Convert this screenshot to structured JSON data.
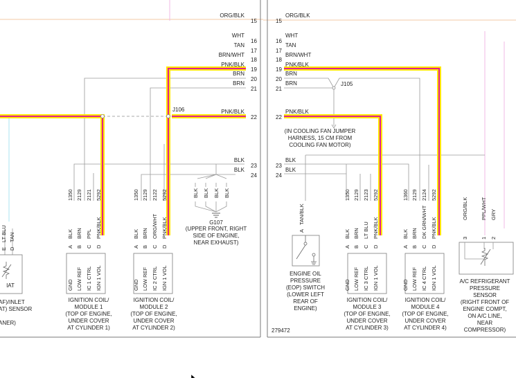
{
  "page_number": "279472",
  "left_page": {
    "pins": [
      {
        "num": "15",
        "label": "ORG/BLK"
      },
      {
        "num": "16",
        "label": "WHT"
      },
      {
        "num": "17",
        "label": "TAN"
      },
      {
        "num": "18",
        "label": "BRN/WHT"
      },
      {
        "num": "19",
        "label": "PNK/BLK"
      },
      {
        "num": "20",
        "label": "BRN"
      },
      {
        "num": "21",
        "label": "BRN"
      },
      {
        "num": "22",
        "label": "PNK/BLK"
      },
      {
        "num": "23",
        "label": "BLK"
      },
      {
        "num": "24",
        "label": "BLK"
      }
    ],
    "splice": "J106",
    "ground": {
      "name": "G107",
      "caption": [
        "(UPPER FRONT, RIGHT",
        "SIDE OF ENGINE,",
        "NEAR EXHAUST)"
      ],
      "wires": [
        "BLK",
        "BLK",
        "BLK",
        "BLK"
      ]
    },
    "iat": {
      "pins": [
        {
          "letter": "E",
          "wire": "LT BLU"
        },
        {
          "letter": "D",
          "wire": "TAN"
        }
      ],
      "label": "IAT",
      "caption": [
        "AF)/INLET",
        "AT) SENSOR",
        "",
        "ANER)"
      ]
    },
    "coils": [
      {
        "circuits": [
          "1350",
          "2129",
          "2121",
          "5292"
        ],
        "letters": [
          "A",
          "B",
          "C",
          "D"
        ],
        "wires": [
          "BLK",
          "BRN",
          "PPL",
          "PNK/BLK"
        ],
        "pins": [
          "GND",
          "LOW REF",
          "IC 1 CTRL",
          "IGN 1 VOL"
        ],
        "caption": [
          "IGNITION COIL/",
          "MODULE 1",
          "(TOP OF ENGINE,",
          "UNDER COVER",
          "AT CYLINDER 1)"
        ]
      },
      {
        "circuits": [
          "1350",
          "2129",
          "2122",
          "5292"
        ],
        "letters": [
          "A",
          "B",
          "C",
          "D"
        ],
        "wires": [
          "BLK",
          "BRN",
          "ORG/WHT",
          "PNK/BLK"
        ],
        "pins": [
          "GND",
          "LOW REF",
          "IC 2 CTRL",
          "IGN 1 VOL"
        ],
        "caption": [
          "IGNITION COIL/",
          "MODULE 2",
          "(TOP OF ENGINE,",
          "UNDER COVER",
          "AT CYLINDER 2)"
        ]
      }
    ]
  },
  "right_page": {
    "pins": [
      {
        "num": "15",
        "label": "ORG/BLK"
      },
      {
        "num": "16",
        "label": "WHT"
      },
      {
        "num": "17",
        "label": "TAN"
      },
      {
        "num": "18",
        "label": "BRN/WHT"
      },
      {
        "num": "19",
        "label": "PNK/BLK"
      },
      {
        "num": "20",
        "label": "BRN"
      },
      {
        "num": "21",
        "label": "BRN"
      },
      {
        "num": "22",
        "label": "PNK/BLK"
      },
      {
        "num": "23",
        "label": "BLK"
      },
      {
        "num": "24",
        "label": "BLK"
      }
    ],
    "splice": "J105",
    "splice_caption": [
      "(IN COOLING FAN JUMPER",
      "HARNESS, 15 CM FROM",
      "COOLING FAN MOTOR)"
    ],
    "eop": {
      "pin": {
        "letter": "A",
        "wire": "TAN/BLK"
      },
      "caption": [
        "ENGINE OIL",
        "PRESSURE",
        "(EOP) SWITCH",
        "(LOWER LEFT",
        "REAR OF",
        "ENGINE)"
      ]
    },
    "coils": [
      {
        "circuits": [
          "1350",
          "2129",
          "2123",
          "5292"
        ],
        "letters": [
          "A",
          "B",
          "C",
          "D"
        ],
        "wires": [
          "BLK",
          "BRN",
          "LT BLU",
          "PNK/BLK"
        ],
        "pins": [
          "GND",
          "LOW REF",
          "IC 3 CTRL",
          "IGN 1 VOL"
        ],
        "caption": [
          "IGNITION COIL/",
          "MODULE 3",
          "(TOP OF ENGINE,",
          "UNDER COVER",
          "AT CYLINDER 3)"
        ]
      },
      {
        "circuits": [
          "1360",
          "2129",
          "2124",
          "5292"
        ],
        "letters": [
          "A",
          "B",
          "C",
          "D"
        ],
        "wires": [
          "BLK",
          "BRN",
          "DK GRN/WHT",
          "PNK/BLK"
        ],
        "pins": [
          "GND",
          "LOW REF",
          "IC 4 CTRL",
          "IGN 1 VOL"
        ],
        "caption": [
          "IGNITION COIL/",
          "MODULE 4",
          "(TOP OF ENGINE,",
          "UNDER COVER",
          "AT CYLINDER 4)"
        ]
      }
    ],
    "ac_sensor": {
      "pins": [
        {
          "num": "3",
          "wire": "ORG/BLK"
        },
        {
          "num": "1",
          "wire": "PPL/WHT"
        },
        {
          "num": "2",
          "wire": "GRY"
        }
      ],
      "caption": [
        "A/C REFRIGERANT",
        "PRESSURE",
        "SENSOR",
        "(RIGHT FRONT OF",
        "ENGINE COMPT,",
        "ON A/C LINE,",
        "NEAR",
        "COMPRESSOR)"
      ]
    }
  },
  "colors": {
    "highlight_outer": "#ffe600",
    "highlight_inner": "#e0208e",
    "wire": "#9a9a9a",
    "page_border": "#7a7a7a"
  }
}
